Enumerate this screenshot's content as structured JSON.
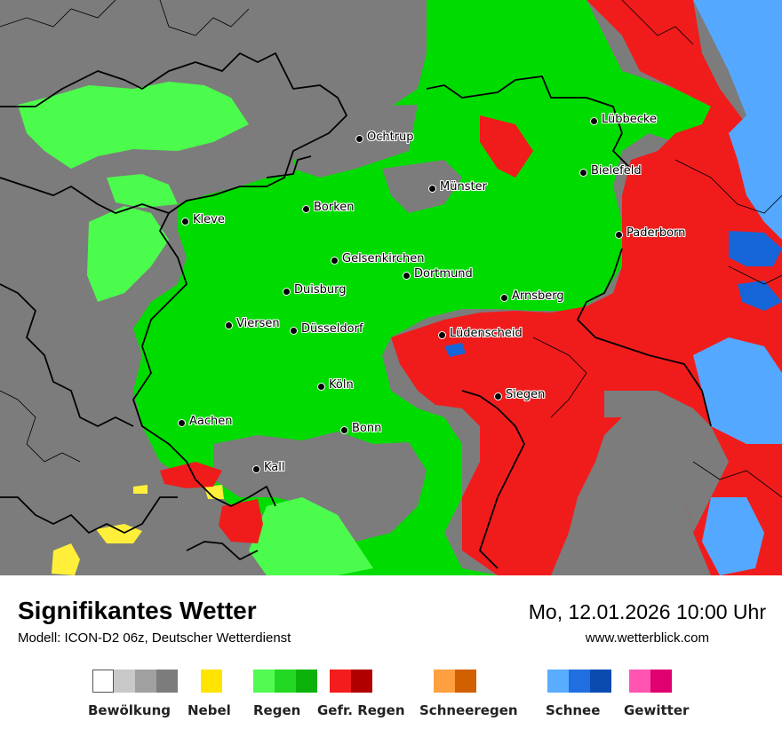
{
  "map": {
    "cities": [
      {
        "name": "Lübbecke"
      },
      {
        "name": "Ochtrup"
      },
      {
        "name": "Bielefeld"
      },
      {
        "name": "Münster"
      },
      {
        "name": "Kleve"
      },
      {
        "name": "Borken"
      },
      {
        "name": "Paderborn"
      },
      {
        "name": "Gelsenkirchen"
      },
      {
        "name": "Dortmund"
      },
      {
        "name": "Duisburg"
      },
      {
        "name": "Arnsberg"
      },
      {
        "name": "Viersen"
      },
      {
        "name": "Düsseldorf"
      },
      {
        "name": "Lüdenscheid"
      },
      {
        "name": "Köln"
      },
      {
        "name": "Siegen"
      },
      {
        "name": "Aachen"
      },
      {
        "name": "Bonn"
      },
      {
        "name": "Kall"
      }
    ],
    "colors": {
      "cloud": "#7c7c7c",
      "rain": "#00dc00",
      "rain_light": "#4cfc4c",
      "freezing_rain": "#f01c1c",
      "snow_light": "#55a8ff",
      "snow": "#1565d8",
      "fog": "#ffef3a"
    }
  },
  "footer": {
    "title": "Signifikantes Wetter",
    "subtitle": "Modell: ICON-D2 06z, Deutscher Wetterdienst",
    "datetime": "Mo, 12.01.2026 10:00 Uhr",
    "website": "www.wetterblick.com"
  },
  "legend": [
    {
      "label": "Bewölkung",
      "colors": [
        "#ffffff",
        "#c8c8c8",
        "#a0a0a0",
        "#7c7c7c"
      ]
    },
    {
      "label": "Nebel",
      "colors": [
        "#ffe400"
      ]
    },
    {
      "label": "Regen",
      "colors": [
        "#52fa52",
        "#22d822",
        "#0ab20a"
      ]
    },
    {
      "label": "Gefr. Regen",
      "colors": [
        "#f41c1c",
        "#b00000"
      ]
    },
    {
      "label": "Schneeregen",
      "colors": [
        "#ffa040",
        "#d06000"
      ]
    },
    {
      "label": "Schnee",
      "colors": [
        "#5aacff",
        "#1f6fe0",
        "#0b4bb0"
      ]
    },
    {
      "label": "Gewitter",
      "colors": [
        "#ff55b0",
        "#e00070"
      ]
    }
  ]
}
